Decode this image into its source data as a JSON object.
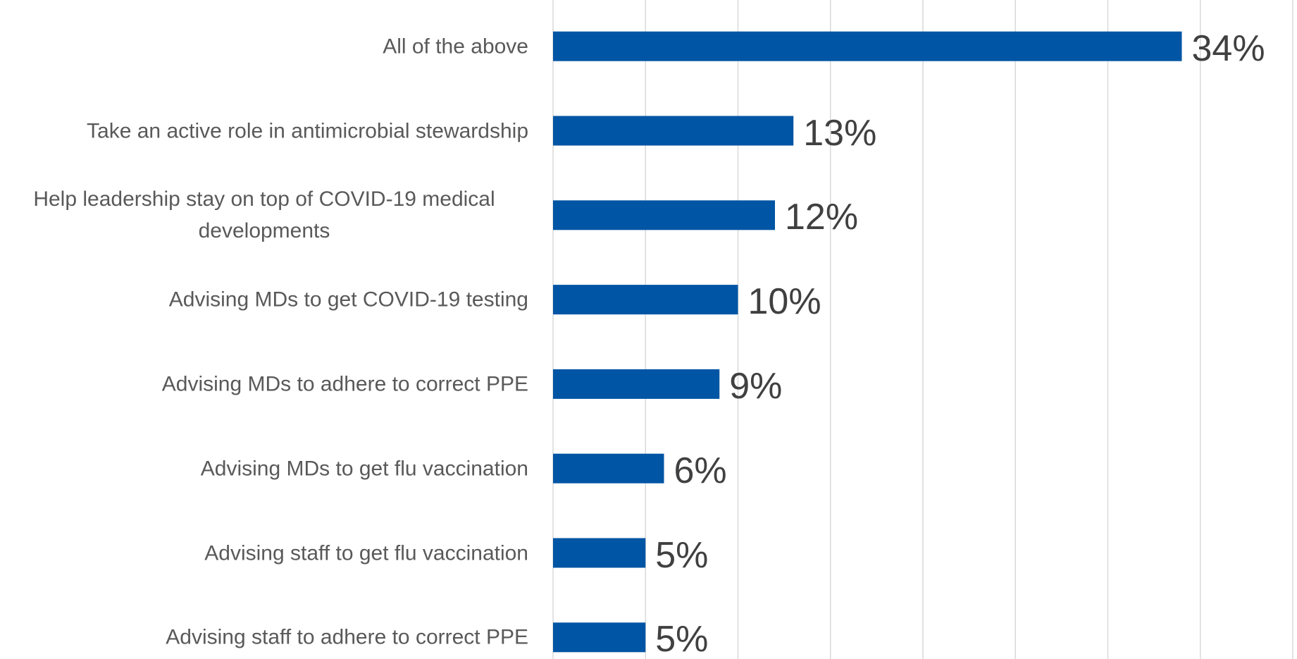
{
  "chart_data": {
    "type": "bar",
    "orientation": "horizontal",
    "categories": [
      "All of the above",
      "Take an active role in antimicrobial stewardship",
      "Help leadership stay on top of COVID-19 medical developments",
      "Advising MDs to get COVID-19 testing",
      "Advising MDs to adhere to correct PPE",
      "Advising MDs to get flu vaccination",
      "Advising staff to get flu vaccination",
      "Advising staff to adhere to correct PPE"
    ],
    "values": [
      34,
      13,
      12,
      10,
      9,
      6,
      5,
      5
    ],
    "value_labels": [
      "34%",
      "13%",
      "12%",
      "10%",
      "9%",
      "6%",
      "5%",
      "5%"
    ],
    "color": "#0055a4",
    "xlim": [
      0,
      40
    ],
    "xticks": [
      0,
      5,
      10,
      15,
      20,
      25,
      30,
      35,
      40
    ],
    "grid": true
  }
}
